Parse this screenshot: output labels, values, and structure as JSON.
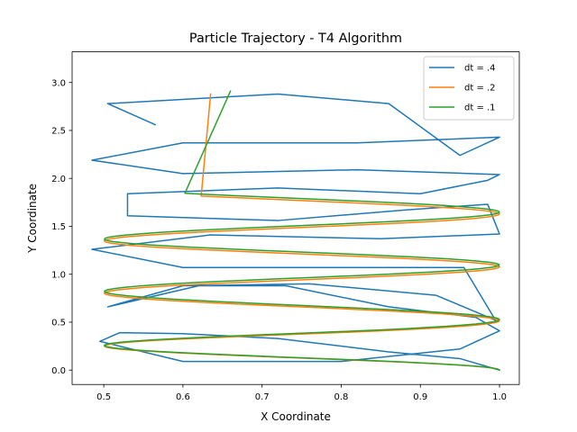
{
  "chart_data": {
    "type": "line",
    "title": "Particle Trajectory - T4 Algorithm",
    "xlabel": "X Coordinate",
    "ylabel": "Y Coordinate",
    "xlim": [
      0.46,
      1.025
    ],
    "ylim": [
      -0.15,
      3.32
    ],
    "xticks": [
      0.5,
      0.6,
      0.7,
      0.8,
      0.9,
      1.0
    ],
    "xtick_labels": [
      "0.5",
      "0.6",
      "0.7",
      "0.8",
      "0.9",
      "1.0"
    ],
    "yticks": [
      0.0,
      0.5,
      1.0,
      1.5,
      2.0,
      2.5,
      3.0
    ],
    "ytick_labels": [
      "0.0",
      "0.5",
      "1.0",
      "1.5",
      "2.0",
      "2.5",
      "3.0"
    ],
    "grid": false,
    "legend_position": "top-right",
    "series": [
      {
        "name": "dt = .4",
        "color": "#1f77b4",
        "x": [
          1.0,
          0.95,
          0.86,
          0.72,
          0.6,
          0.52,
          0.495,
          0.6,
          0.8,
          0.95,
          1.0,
          0.97,
          0.86,
          0.73,
          0.62,
          0.505,
          0.6,
          0.76,
          0.92,
          0.995,
          0.955,
          0.8,
          0.6,
          0.485,
          0.635,
          0.85,
          1.0,
          0.985,
          0.88,
          0.72,
          0.53,
          0.53,
          0.72,
          0.9,
          0.985,
          1.0,
          0.82,
          0.6,
          0.485,
          0.6,
          0.82,
          1.0,
          0.95,
          0.86,
          0.72,
          0.505,
          0.565,
          0.505
        ],
        "y": [
          0.0,
          0.12,
          0.19,
          0.33,
          0.38,
          0.39,
          0.3,
          0.09,
          0.09,
          0.22,
          0.41,
          0.55,
          0.66,
          0.88,
          0.88,
          0.66,
          0.88,
          0.9,
          0.78,
          0.52,
          1.07,
          1.07,
          1.07,
          1.26,
          1.41,
          1.37,
          1.42,
          1.73,
          1.67,
          1.56,
          1.61,
          1.84,
          1.9,
          1.84,
          1.98,
          2.04,
          2.09,
          2.05,
          2.19,
          2.37,
          2.37,
          2.43,
          2.24,
          2.78,
          2.88,
          2.78,
          2.56,
          2.78
        ]
      },
      {
        "name": "dt = .2",
        "color": "#ff7f0e",
        "curve": {
          "x_center": 0.7503,
          "x_amplitude": 0.2497,
          "y_base": 0.0,
          "y_step": 0.5,
          "period": 0.4716,
          "phase_scale": 3.3,
          "t_end": 6.35,
          "steps": 160,
          "y_samples": [
            [
              0.0,
              0.0
            ],
            [
              0.5,
              0.41
            ],
            [
              1.0,
              0.88
            ],
            [
              1.5,
              1.32
            ],
            [
              2.0,
              1.78
            ],
            [
              2.5,
              2.22
            ],
            [
              3.0,
              2.68
            ],
            [
              3.5,
              3.13
            ],
            [
              3.55,
              3.17
            ]
          ],
          "x_end": 0.635,
          "y_end": 2.88
        }
      },
      {
        "name": "dt = .1",
        "color": "#2ca02c",
        "curve": {
          "x_center": 0.7503,
          "x_amplitude": 0.2497,
          "y_base": 0.0,
          "y_step": 0.5,
          "period": 0.4716,
          "phase_scale": 3.3,
          "t_end": 6.38,
          "steps": 160,
          "y_samples": [
            [
              0.0,
              0.0
            ],
            [
              0.5,
              0.42
            ],
            [
              1.0,
              0.9
            ],
            [
              1.5,
              1.34
            ],
            [
              2.0,
              1.8
            ],
            [
              2.5,
              2.25
            ],
            [
              3.0,
              2.72
            ],
            [
              3.5,
              3.16
            ],
            [
              3.55,
              3.19
            ]
          ],
          "x_end": 0.66,
          "y_end": 2.91
        }
      }
    ]
  }
}
